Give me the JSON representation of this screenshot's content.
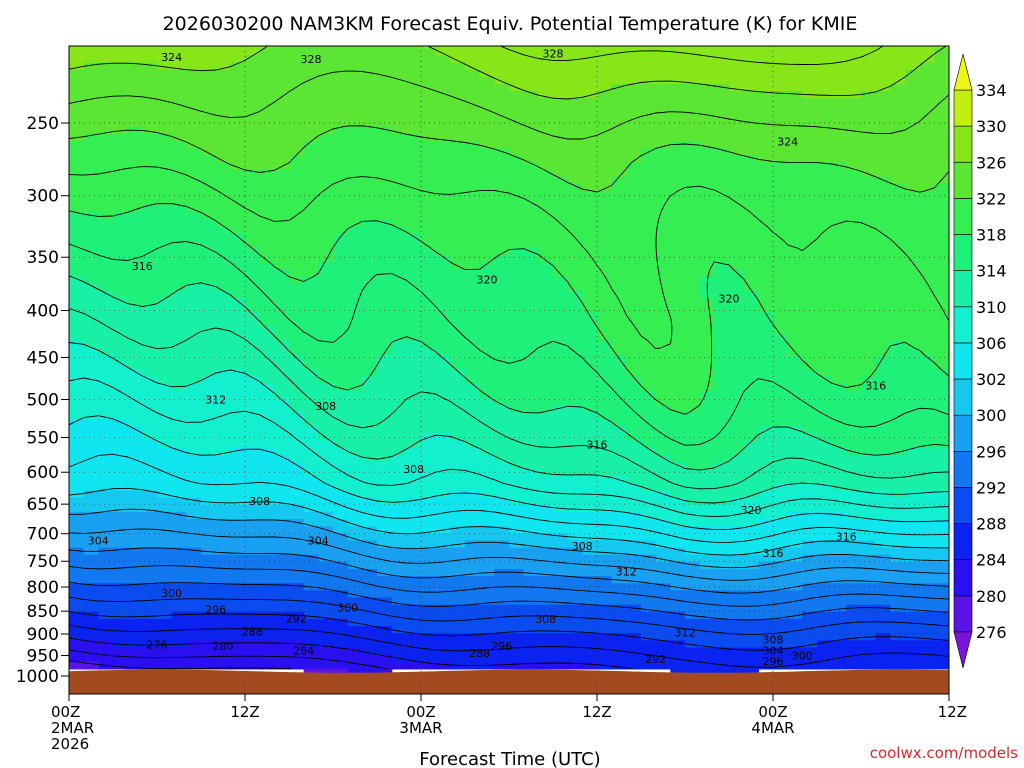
{
  "chart_data": {
    "type": "heatmap",
    "title": "2026030200 NAM3KM Forecast Equiv. Potential Temperature (K) for KMIE",
    "xlabel": "Forecast Time (UTC)",
    "ylabel": "",
    "y_axis": {
      "scale": "pressure (hPa), log",
      "range": [
        1000,
        200
      ],
      "ticks": [
        250,
        300,
        350,
        400,
        450,
        500,
        550,
        600,
        650,
        700,
        750,
        800,
        850,
        900,
        950,
        1000
      ]
    },
    "x_axis": {
      "range_hours": [
        0,
        60
      ],
      "ticks": [
        {
          "hour": 0,
          "lines": [
            "00Z",
            "2MAR",
            "2026"
          ]
        },
        {
          "hour": 12,
          "lines": [
            "12Z"
          ]
        },
        {
          "hour": 24,
          "lines": [
            "00Z",
            "3MAR"
          ]
        },
        {
          "hour": 36,
          "lines": [
            "12Z"
          ]
        },
        {
          "hour": 48,
          "lines": [
            "00Z",
            "4MAR"
          ]
        },
        {
          "hour": 60,
          "lines": [
            "12Z"
          ]
        }
      ]
    },
    "colorbar": {
      "levels": [
        276,
        280,
        284,
        288,
        292,
        296,
        300,
        302,
        306,
        310,
        314,
        318,
        322,
        326,
        330,
        334
      ],
      "colors": [
        "#7b14d9",
        "#5a14e6",
        "#2a0ff0",
        "#0a23f0",
        "#0a4cf0",
        "#1278f0",
        "#1aa0f0",
        "#14c8f0",
        "#10e6f0",
        "#12f0d0",
        "#18f0a6",
        "#1ef07a",
        "#34ee52",
        "#5ae632",
        "#86e618",
        "#c2ee10",
        "#ecf41a"
      ]
    },
    "contour_labels": [
      {
        "value": "324",
        "time_h": 7.0,
        "pres": 212
      },
      {
        "value": "328",
        "time_h": 16.5,
        "pres": 213
      },
      {
        "value": "328",
        "time_h": 33.0,
        "pres": 210
      },
      {
        "value": "324",
        "time_h": 49.0,
        "pres": 262
      },
      {
        "value": "316",
        "time_h": 5.0,
        "pres": 358
      },
      {
        "value": "320",
        "time_h": 28.5,
        "pres": 370
      },
      {
        "value": "320",
        "time_h": 45.0,
        "pres": 388
      },
      {
        "value": "312",
        "time_h": 10.0,
        "pres": 500
      },
      {
        "value": "308",
        "time_h": 17.5,
        "pres": 508
      },
      {
        "value": "316",
        "time_h": 55.0,
        "pres": 483
      },
      {
        "value": "316",
        "time_h": 36.0,
        "pres": 560
      },
      {
        "value": "308",
        "time_h": 23.5,
        "pres": 595
      },
      {
        "value": "308",
        "time_h": 13.0,
        "pres": 645
      },
      {
        "value": "320",
        "time_h": 46.5,
        "pres": 660
      },
      {
        "value": "304",
        "time_h": 2.0,
        "pres": 712
      },
      {
        "value": "304",
        "time_h": 17.0,
        "pres": 712
      },
      {
        "value": "308",
        "time_h": 35.0,
        "pres": 722
      },
      {
        "value": "316",
        "time_h": 48.0,
        "pres": 735
      },
      {
        "value": "316",
        "time_h": 53.0,
        "pres": 705
      },
      {
        "value": "312",
        "time_h": 38.0,
        "pres": 770
      },
      {
        "value": "300",
        "time_h": 7.0,
        "pres": 812
      },
      {
        "value": "296",
        "time_h": 10.0,
        "pres": 846
      },
      {
        "value": "300",
        "time_h": 19.0,
        "pres": 842
      },
      {
        "value": "292",
        "time_h": 15.5,
        "pres": 866
      },
      {
        "value": "288",
        "time_h": 12.5,
        "pres": 894
      },
      {
        "value": "308",
        "time_h": 32.5,
        "pres": 867
      },
      {
        "value": "312",
        "time_h": 42.0,
        "pres": 897
      },
      {
        "value": "308",
        "time_h": 48.0,
        "pres": 913
      },
      {
        "value": "276",
        "time_h": 6.0,
        "pres": 924
      },
      {
        "value": "280",
        "time_h": 10.5,
        "pres": 928
      },
      {
        "value": "284",
        "time_h": 16.0,
        "pres": 938
      },
      {
        "value": "288",
        "time_h": 28.0,
        "pres": 944
      },
      {
        "value": "296",
        "time_h": 29.5,
        "pres": 928
      },
      {
        "value": "292",
        "time_h": 40.0,
        "pres": 958
      },
      {
        "value": "304",
        "time_h": 48.0,
        "pres": 938
      },
      {
        "value": "300",
        "time_h": 50.0,
        "pres": 950
      },
      {
        "value": "296",
        "time_h": 48.0,
        "pres": 963
      }
    ]
  },
  "footer": {
    "credit": "coolwx.com/models"
  }
}
